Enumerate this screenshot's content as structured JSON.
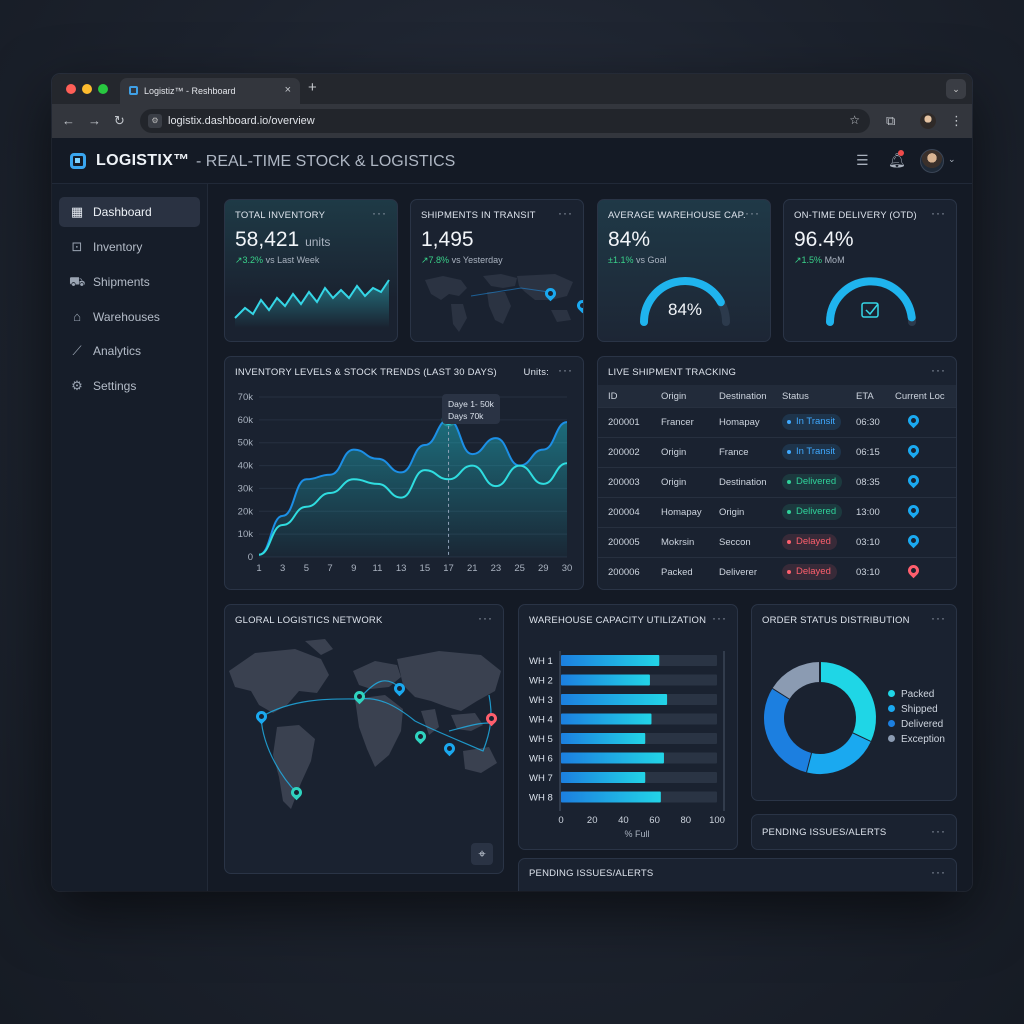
{
  "browser": {
    "tab_title": "Logistiz™ - Reshboard",
    "tab_close": "×",
    "new_tab": "+",
    "tab_menu": "⌄",
    "url": "logistix.dashboard.io/overview",
    "back": "←",
    "forward": "→",
    "reload": "↻",
    "bookmark": "☆",
    "extensions": "⧉",
    "menu": "⋮"
  },
  "app": {
    "brand": "LOGISTIX™",
    "subtitle": "- REAL-TIME STOCK & LOGISTICS",
    "icons": [
      "layout-icon",
      "bell-icon"
    ]
  },
  "sidebar": {
    "items": [
      {
        "label": "Dashboard",
        "icon": "grid-icon",
        "glyph": "▦"
      },
      {
        "label": "Inventory",
        "icon": "box-icon",
        "glyph": "⊡"
      },
      {
        "label": "Shipments",
        "icon": "truck-icon",
        "glyph": "⛟"
      },
      {
        "label": "Warehouses",
        "icon": "warehouse-icon",
        "glyph": "⌂"
      },
      {
        "label": "Analytics",
        "icon": "chart-icon",
        "glyph": "⟋"
      },
      {
        "label": "Settings",
        "icon": "gear-icon",
        "glyph": "⚙"
      }
    ]
  },
  "kpis": [
    {
      "title": "TOTAL INVENTORY",
      "value": "58,421",
      "unit": "units",
      "delta": "↗3.2%",
      "delta_text": " vs Last Week"
    },
    {
      "title": "SHIPMENTS IN TRANSIT",
      "value": "1,495",
      "unit": "",
      "delta": "↗7.8%",
      "delta_text": " vs Yesterday"
    },
    {
      "title": "AVERAGE WAREHOUSE CAP.",
      "value": "84%",
      "unit": "",
      "delta": "±1.1%",
      "delta_text": " vs Goal",
      "gauge_label": "84%",
      "gauge_fraction": 0.84
    },
    {
      "title": "ON-TIME DELIVERY (OTD)",
      "value": "96.4%",
      "unit": "",
      "delta": "↗1.5%",
      "delta_text": " MoM",
      "gauge_fraction": 0.964
    }
  ],
  "trend": {
    "title": "INVENTORY LEVELS & STOCK TRENDS (LAST 30 DAYS)",
    "units_label": "Units:",
    "tooltip_line1": "Daye 1- 50k",
    "tooltip_line2": "Days 70k"
  },
  "tracking": {
    "title": "LIVE SHIPMENT TRACKING",
    "columns": [
      "ID",
      "Origin",
      "Destination",
      "Status",
      "ETA",
      "Current Loc"
    ],
    "rows": [
      {
        "id": "200001",
        "origin": "Francer",
        "destination": "Homapay",
        "status": "In Transit",
        "eta": "06:30"
      },
      {
        "id": "200002",
        "origin": "Origin",
        "destination": "France",
        "status": "In Transit",
        "eta": "06:15"
      },
      {
        "id": "200003",
        "origin": "Origin",
        "destination": "Destination",
        "status": "Delivered",
        "eta": "08:35"
      },
      {
        "id": "200004",
        "origin": "Homapay",
        "destination": "Origin",
        "status": "Delivered",
        "eta": "13:00"
      },
      {
        "id": "200005",
        "origin": "Mokrsin",
        "destination": "Seccon",
        "status": "Delayed",
        "eta": "03:10"
      },
      {
        "id": "200006",
        "origin": "Packed",
        "destination": "Deliverer",
        "status": "Delayed",
        "eta": "03:10"
      }
    ],
    "status_colors": {
      "In Transit": "#3fa9ff",
      "Delivered": "#2fd39a",
      "Delayed": "#ff5f6d"
    }
  },
  "network": {
    "title": "GLORAL LOGISTICS NETWORK",
    "locate_icon": "⌖"
  },
  "order_status": {
    "title": "ORDER STATUS DISTRIBUTION"
  },
  "pending": {
    "title": "PENDING ISSUES/ALERTS",
    "title_cut": "PENDING ISSUES/ALERTS"
  },
  "more_glyph": "···",
  "chart_data": [
    {
      "type": "area",
      "title": "INVENTORY LEVELS & STOCK TRENDS (LAST 30 DAYS)",
      "x": [
        1,
        3,
        5,
        7,
        9,
        11,
        13,
        15,
        17,
        21,
        23,
        25,
        29,
        30
      ],
      "x_ticks": [
        "1",
        "3",
        "5",
        "7",
        "9",
        "11",
        "13",
        "15",
        "17",
        "21",
        "23",
        "25",
        "29",
        "30"
      ],
      "y_ticks": [
        "0",
        "10k",
        "20k",
        "30k",
        "40k",
        "50k",
        "60k",
        "70k"
      ],
      "ylim": [
        0,
        70000
      ],
      "series": [
        {
          "values": [
            1000,
            18000,
            34000,
            36000,
            47000,
            43000,
            37000,
            49000,
            60000,
            45000,
            52000,
            40000,
            47000,
            59000
          ]
        },
        {
          "values": [
            1000,
            14000,
            22000,
            28000,
            34000,
            32000,
            26000,
            38000,
            34000,
            40000,
            31000,
            40000,
            32000,
            41000
          ]
        }
      ],
      "highlight_index": 8,
      "grid": true
    },
    {
      "type": "bar",
      "orientation": "horizontal",
      "title": "WAREHOUSE CAPACITY UTILIZATION",
      "categories": [
        "WH 1",
        "WH 2",
        "WH 3",
        "WH 4",
        "WH 5",
        "WH 6",
        "WH 7",
        "WH 8"
      ],
      "values": [
        63,
        57,
        68,
        58,
        54,
        66,
        54,
        64
      ],
      "xlabel": "% Full",
      "x_ticks": [
        "0",
        "20",
        "40",
        "60",
        "80",
        "100"
      ],
      "xlim": [
        0,
        100
      ]
    },
    {
      "type": "pie",
      "title": "ORDER STATUS DISTRIBUTION",
      "categories": [
        "Packed",
        "Shipped",
        "Delivered",
        "Exception"
      ],
      "values": [
        32,
        22,
        30,
        16
      ],
      "colors": [
        "#1fd6e6",
        "#1aa9f0",
        "#1c7fe0",
        "#8b9bb2"
      ],
      "legend": "right"
    }
  ]
}
